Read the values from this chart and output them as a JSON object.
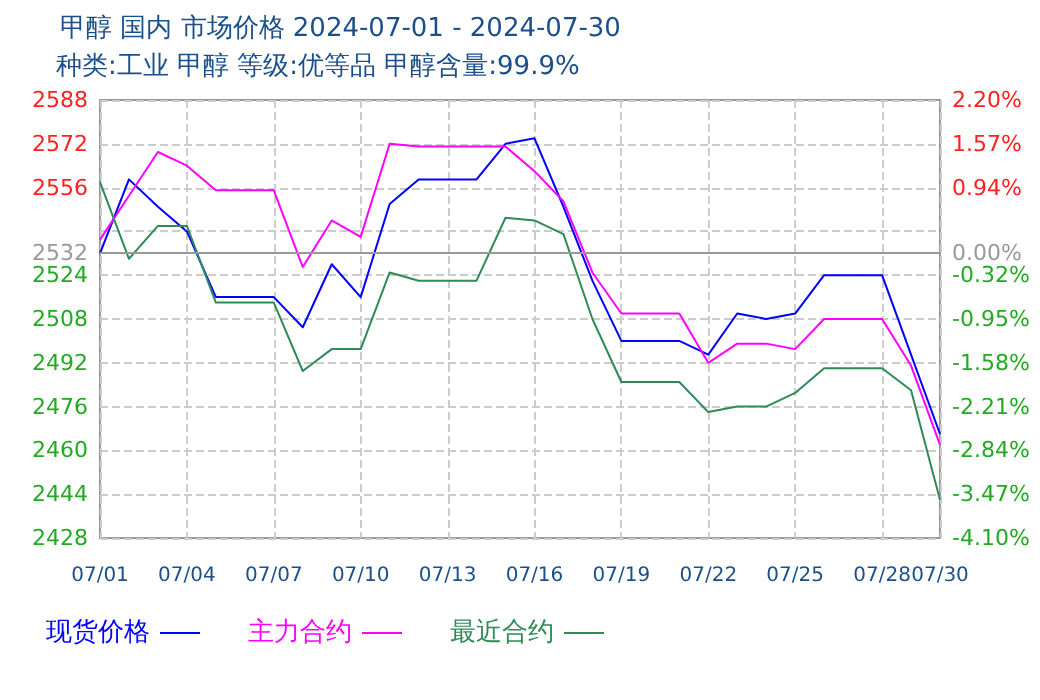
{
  "chart_data": {
    "type": "line",
    "title": "甲醇 国内 市场价格 2024-07-01 - 2024-07-30",
    "subtitle": "种类:工业 甲醇 等级:优等品 甲醇含量:99.9%",
    "categories": [
      "07/01",
      null,
      null,
      "07/04",
      null,
      null,
      "07/07",
      null,
      null,
      "07/10",
      null,
      null,
      "07/13",
      null,
      null,
      "07/16",
      null,
      null,
      "07/19",
      null,
      null,
      "07/22",
      null,
      null,
      "07/25",
      null,
      null,
      "07/28",
      null,
      "07/30"
    ],
    "series": [
      {
        "name": "现货价格",
        "color": "#0000ff",
        "values": [
          2532,
          2559,
          2549,
          2540,
          2516,
          2516,
          2516,
          2505,
          2528,
          2516,
          2550,
          2559,
          2559,
          2559,
          2572,
          2574,
          2549,
          2522,
          2500,
          2500,
          2500,
          2495,
          2510,
          2508,
          2510,
          2524,
          2524,
          2524,
          2495,
          2466
        ]
      },
      {
        "name": "主力合约",
        "color": "#ff00ff",
        "values": [
          2537,
          2553,
          2569,
          2564,
          2555,
          2555,
          2555,
          2527,
          2544,
          2538,
          2572,
          2571,
          2571,
          2571,
          2571,
          2562,
          2551,
          2525,
          2510,
          2510,
          2510,
          2492,
          2499,
          2499,
          2497,
          2508,
          2508,
          2508,
          2491,
          2462
        ]
      },
      {
        "name": "最近合约",
        "color": "#2e8b57",
        "values": [
          2558,
          2530,
          2542,
          2542,
          2514,
          2514,
          2514,
          2489,
          2497,
          2497,
          2525,
          2522,
          2522,
          2522,
          2545,
          2544,
          2539,
          2508,
          2485,
          2485,
          2485,
          2474,
          2476,
          2476,
          2481,
          2490,
          2490,
          2490,
          2482,
          2442
        ]
      }
    ],
    "ylim": [
      2428,
      2588
    ],
    "yticks": [
      2428,
      2444,
      2460,
      2476,
      2492,
      2508,
      2524,
      2532,
      {
        "value": 2540,
        "label": null
      },
      2556,
      2572,
      2588
    ],
    "y2lim": [
      -4.1,
      2.2
    ],
    "y2ticks": [
      {
        "value": -4.1,
        "label": "-4.10%"
      },
      {
        "value": -3.47,
        "label": "-3.47%"
      },
      {
        "value": -2.84,
        "label": "-2.84%"
      },
      {
        "value": -2.21,
        "label": "-2.21%"
      },
      {
        "value": -1.58,
        "label": "-1.58%"
      },
      {
        "value": -0.95,
        "label": "-0.95%"
      },
      {
        "value": -0.32,
        "label": "-0.32%"
      },
      {
        "value": 0,
        "label": "0.00%"
      },
      {
        "value": 0.94,
        "label": "0.94%"
      },
      {
        "value": 1.57,
        "label": "1.57%"
      },
      {
        "value": 2.2,
        "label": "2.20%"
      }
    ],
    "ref_lines": [
      {
        "axis": "y",
        "value": 2532,
        "color": "#999999"
      }
    ],
    "grid": true,
    "legend": "bottom left",
    "marker": "none",
    "line_style": "solid"
  }
}
